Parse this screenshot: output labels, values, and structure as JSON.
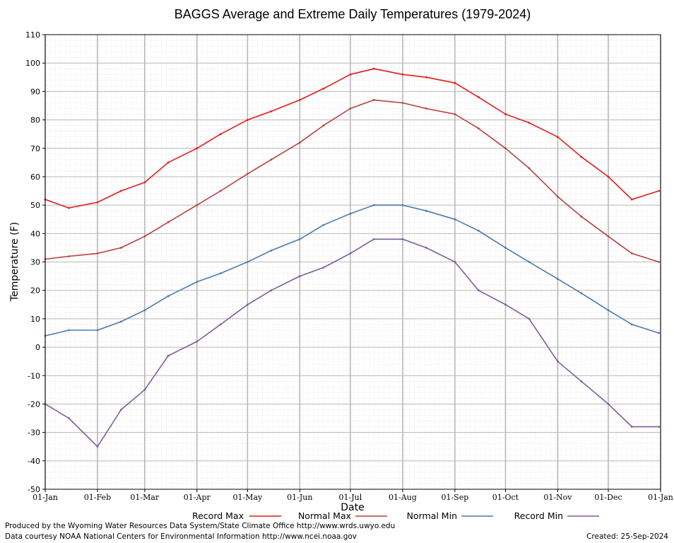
{
  "chart_data": {
    "type": "line",
    "title": "BAGGS Average and Extreme Daily Temperatures (1979-2024)",
    "xlabel": "Date",
    "ylabel": "Temperature (F)",
    "ylim": [
      -50,
      110
    ],
    "yticks": [
      -50,
      -40,
      -30,
      -20,
      -10,
      0,
      10,
      20,
      30,
      40,
      50,
      60,
      70,
      80,
      90,
      100,
      110
    ],
    "xlim": [
      "01-Jan",
      "01-Jan (next year)"
    ],
    "xticks": [
      "01-Jan",
      "01-Feb",
      "01-Mar",
      "01-Apr",
      "01-May",
      "01-Jun",
      "01-Jul",
      "01-Aug",
      "01-Sep",
      "01-Oct",
      "01-Nov",
      "01-Dec",
      "01-Jan"
    ],
    "grid": true,
    "legend_position": "bottom",
    "x": [
      "Jan 1",
      "Jan 15",
      "Feb 1",
      "Feb 15",
      "Mar 1",
      "Mar 15",
      "Apr 1",
      "Apr 15",
      "May 1",
      "May 15",
      "Jun 1",
      "Jun 15",
      "Jul 1",
      "Jul 15",
      "Aug 1",
      "Aug 15",
      "Sep 1",
      "Sep 15",
      "Oct 1",
      "Oct 15",
      "Nov 1",
      "Nov 15",
      "Dec 1",
      "Dec 15",
      "Dec 31"
    ],
    "series": [
      {
        "name": "Record Max",
        "color": "#e41a1c",
        "values": [
          52,
          49,
          51,
          55,
          58,
          65,
          70,
          75,
          80,
          83,
          87,
          91,
          96,
          98,
          96,
          95,
          93,
          88,
          82,
          79,
          74,
          67,
          60,
          52,
          55
        ]
      },
      {
        "name": "Normal Max",
        "color": "#b5413f",
        "values": [
          31,
          32,
          33,
          35,
          39,
          44,
          50,
          55,
          61,
          66,
          72,
          78,
          84,
          87,
          86,
          84,
          82,
          77,
          70,
          63,
          53,
          46,
          39,
          33,
          30
        ]
      },
      {
        "name": "Normal Min",
        "color": "#4a79b0",
        "values": [
          4,
          6,
          6,
          9,
          13,
          18,
          23,
          26,
          30,
          34,
          38,
          43,
          47,
          50,
          50,
          48,
          45,
          41,
          35,
          30,
          24,
          19,
          13,
          8,
          5
        ]
      },
      {
        "name": "Record Min",
        "color": "#7e5b9a",
        "values": [
          -20,
          -25,
          -35,
          -22,
          -15,
          -3,
          2,
          8,
          15,
          20,
          25,
          28,
          33,
          38,
          38,
          35,
          30,
          20,
          15,
          10,
          -5,
          -12,
          -20,
          -28,
          -28
        ]
      }
    ],
    "footer": {
      "produced_by": "Produced by the Wyoming Water Resources Data System/State Climate Office http://www.wrds.uwyo.edu",
      "data_courtesy": "Data courtesy NOAA National Centers for Environmental Information http://www.ncei.noaa.gov",
      "created": "Created: 25-Sep-2024"
    }
  }
}
